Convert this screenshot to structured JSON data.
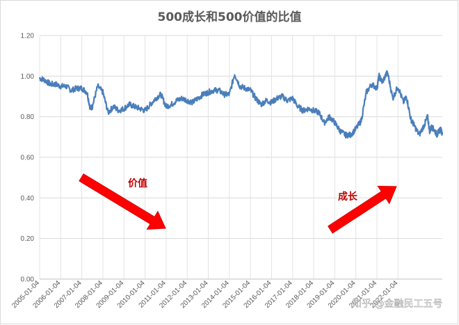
{
  "chart_data": {
    "type": "line",
    "title": "500成长和500价值的比值",
    "ylim": [
      0,
      1.2
    ],
    "y_ticks": [
      "0.00",
      "0.20",
      "0.40",
      "0.60",
      "0.80",
      "1.00",
      "1.20"
    ],
    "x_ticks": [
      "2005-01-04",
      "2006-01-04",
      "2007-01-04",
      "2008-01-04",
      "2009-01-04",
      "2010-01-04",
      "2011-01-04",
      "2012-01-04",
      "2013-01-04",
      "2014-01-04",
      "2015-01-04",
      "2016-01-04",
      "2017-01-04",
      "2018-01-04",
      "2019-01-04",
      "2020-01-04",
      "2021-01-04",
      "2022-01-04"
    ],
    "grid": "vertical and horizontal",
    "series": [
      {
        "color": "#4a7ebb",
        "x": [
          2005.0,
          2005.25,
          2005.5,
          2005.75,
          2006.0,
          2006.25,
          2006.5,
          2006.75,
          2007.0,
          2007.25,
          2007.4,
          2007.5,
          2007.75,
          2008.0,
          2008.25,
          2008.5,
          2008.75,
          2009.0,
          2009.25,
          2009.5,
          2009.75,
          2010.0,
          2010.25,
          2010.5,
          2010.75,
          2011.0,
          2011.25,
          2011.5,
          2011.75,
          2012.0,
          2012.25,
          2012.5,
          2012.75,
          2013.0,
          2013.25,
          2013.5,
          2013.75,
          2014.0,
          2014.25,
          2014.5,
          2014.75,
          2015.0,
          2015.25,
          2015.5,
          2015.75,
          2016.0,
          2016.25,
          2016.5,
          2016.75,
          2017.0,
          2017.25,
          2017.5,
          2017.75,
          2018.0,
          2018.25,
          2018.5,
          2018.75,
          2019.0,
          2019.25,
          2019.5,
          2019.75,
          2020.0,
          2020.25,
          2020.5,
          2020.75,
          2021.0,
          2021.1,
          2021.25,
          2021.5,
          2021.75,
          2022.0,
          2022.25,
          2022.4,
          2022.6,
          2022.75,
          2023.0,
          2023.25,
          2023.4,
          2023.5,
          2023.6,
          2023.75,
          2023.85,
          2024.0,
          2024.1
        ],
        "values": [
          0.99,
          0.98,
          0.96,
          0.96,
          0.95,
          0.95,
          0.93,
          0.94,
          0.94,
          0.92,
          0.84,
          0.85,
          0.95,
          0.92,
          0.82,
          0.85,
          0.83,
          0.84,
          0.86,
          0.85,
          0.84,
          0.83,
          0.86,
          0.89,
          0.91,
          0.85,
          0.86,
          0.88,
          0.89,
          0.88,
          0.87,
          0.89,
          0.91,
          0.92,
          0.93,
          0.93,
          0.91,
          0.91,
          1.01,
          0.95,
          0.94,
          0.93,
          0.89,
          0.86,
          0.88,
          0.87,
          0.89,
          0.9,
          0.88,
          0.89,
          0.85,
          0.83,
          0.84,
          0.83,
          0.82,
          0.77,
          0.8,
          0.77,
          0.73,
          0.71,
          0.71,
          0.74,
          0.78,
          0.92,
          0.96,
          0.94,
          1.0,
          0.97,
          1.02,
          0.89,
          0.95,
          0.87,
          0.9,
          0.79,
          0.76,
          0.71,
          0.76,
          0.8,
          0.73,
          0.75,
          0.73,
          0.71,
          0.74,
          0.72
        ]
      }
    ],
    "annotations": [
      {
        "text": "价值",
        "color": "#ff0000",
        "direction": "down"
      },
      {
        "text": "成长",
        "color": "#ff0000",
        "direction": "up"
      }
    ],
    "watermark": "知乎 @金融民工五号"
  }
}
